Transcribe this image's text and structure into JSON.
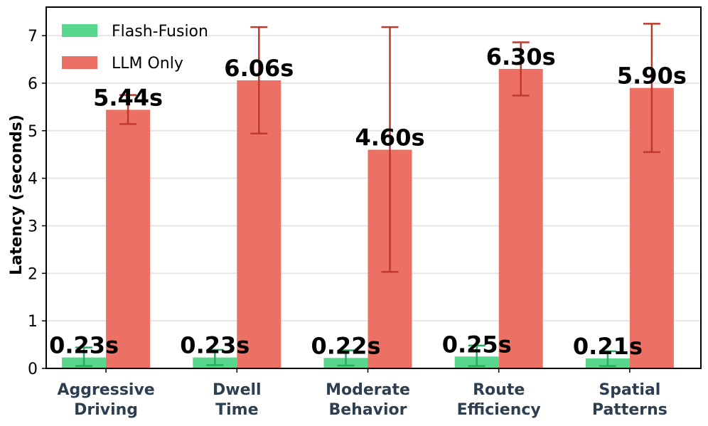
{
  "chart_data": {
    "type": "bar",
    "title": "",
    "xlabel": "",
    "ylabel": "Latency (seconds)",
    "ylim": [
      0,
      7.6
    ],
    "yticks": [
      0,
      1,
      2,
      3,
      4,
      5,
      6,
      7
    ],
    "grid": true,
    "legend_position": "top-left",
    "categories": [
      [
        "Aggressive",
        "Driving"
      ],
      [
        "Dwell",
        "Time"
      ],
      [
        "Moderate",
        "Behavior"
      ],
      [
        "Route",
        "Efficiency"
      ],
      [
        "Spatial",
        "Patterns"
      ]
    ],
    "series": [
      {
        "name": "Flash-Fusion",
        "color": "#58d68d",
        "error_color": "#27ae60",
        "values": [
          0.23,
          0.23,
          0.22,
          0.25,
          0.21
        ],
        "error_low": [
          0.05,
          0.07,
          0.06,
          0.05,
          0.05
        ],
        "error_high": [
          0.44,
          0.39,
          0.38,
          0.48,
          0.36
        ],
        "labels": [
          "0.23s",
          "0.23s",
          "0.22s",
          "0.25s",
          "0.21s"
        ]
      },
      {
        "name": "LLM Only",
        "color": "#ec7063",
        "error_color": "#c0392b",
        "values": [
          5.44,
          6.06,
          4.6,
          6.3,
          5.9
        ],
        "error_low": [
          5.14,
          4.94,
          2.03,
          5.74,
          4.55
        ],
        "error_high": [
          5.75,
          7.18,
          7.18,
          6.86,
          7.25
        ],
        "labels": [
          "5.44s",
          "6.06s",
          "4.60s",
          "6.30s",
          "5.90s"
        ]
      }
    ]
  }
}
